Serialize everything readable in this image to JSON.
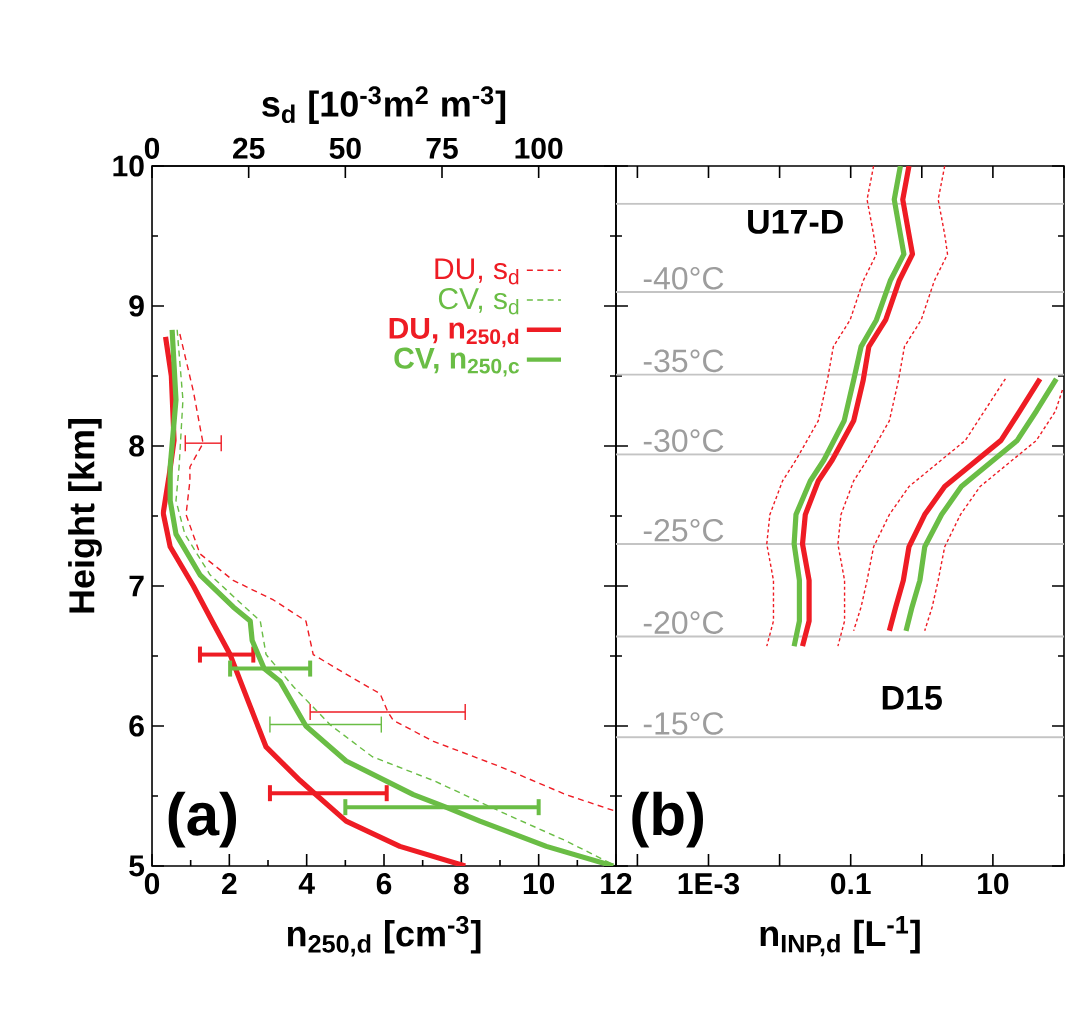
{
  "chart_data": [
    {
      "type": "line",
      "xlabel": "n$_{250,d}$ [cm$^{-3}$]",
      "x2label": "s$_{d}$ [10$^{-3}$m$^{2}$ m$^{-3}$]",
      "ylabel": "Height [km]",
      "xlim": [
        0,
        12
      ],
      "xticks": [
        0,
        2,
        4,
        6,
        8,
        10,
        12
      ],
      "x2lim": [
        0,
        120
      ],
      "x2ticks": [
        0,
        25,
        50,
        75,
        100
      ],
      "ylim": [
        5,
        10
      ],
      "yticks": [
        5,
        6,
        7,
        8,
        9,
        10
      ],
      "legend": "top right",
      "annotations": [
        "(a)"
      ],
      "series": [
        {
          "name": "DU, s$_{d}$",
          "color": "#ee1c24",
          "axis": "x2",
          "line_style": "dashed",
          "x": [
            7.2,
            10.7,
            13.2,
            9.8,
            9.8,
            8.8,
            12.4,
            21,
            31.4,
            39.8,
            41.7,
            50.2,
            59,
            61,
            62.4,
            72.8,
            90,
            107,
            120
          ],
          "values": [
            8.8,
            8.39,
            8.02,
            7.85,
            7.75,
            7.51,
            7.23,
            7.04,
            6.9,
            6.75,
            6.51,
            6.37,
            6.23,
            6.1,
            6.04,
            5.89,
            5.71,
            5.51,
            5.39
          ],
          "xerrors": [
            null,
            null,
            [
              8.6,
              17.9
            ],
            null,
            null,
            null,
            null,
            null,
            null,
            null,
            null,
            null,
            null,
            [
              40.9,
              81
            ],
            null,
            null,
            null,
            null,
            null
          ]
        },
        {
          "name": "CV, s$_{d}$",
          "color": "#6abd45",
          "axis": "x2",
          "line_style": "dashed",
          "x": [
            6.5,
            8,
            7,
            6.2,
            8.5,
            15,
            24,
            28,
            29.5,
            36.6,
            45,
            46,
            57,
            72.8,
            91.6,
            107,
            120
          ],
          "values": [
            8.83,
            8.33,
            7.85,
            7.61,
            7.37,
            7.08,
            6.85,
            6.75,
            6.51,
            6.28,
            6.04,
            6.01,
            5.78,
            5.61,
            5.37,
            5.18,
            5.0
          ],
          "xerrors": [
            null,
            null,
            null,
            null,
            null,
            null,
            null,
            null,
            null,
            null,
            null,
            [
              30.5,
              59.3
            ],
            null,
            null,
            null,
            null,
            null
          ]
        },
        {
          "name": "DU, n$_{250,d}$",
          "color": "#ee1c24",
          "line_style": "solid",
          "x": [
            0.35,
            0.5,
            0.57,
            0.45,
            0.29,
            0.47,
            1.07,
            1.59,
            2.02,
            2.54,
            2.95,
            3.83,
            4.2,
            5.02,
            6.41,
            8.1
          ],
          "values": [
            8.78,
            8.5,
            8.04,
            7.8,
            7.52,
            7.28,
            7.0,
            6.73,
            6.51,
            6.14,
            5.85,
            5.61,
            5.52,
            5.32,
            5.14,
            5.0
          ],
          "xerrors": [
            null,
            null,
            null,
            null,
            null,
            null,
            null,
            null,
            [
              1.24,
              2.62
            ],
            null,
            null,
            null,
            [
              3.05,
              6.07
            ],
            null,
            null,
            null
          ]
        },
        {
          "name": "CV, n$_{250,c}$",
          "color": "#6abd45",
          "line_style": "solid",
          "x": [
            0.52,
            0.62,
            0.47,
            0.47,
            0.62,
            1.24,
            2.1,
            2.54,
            2.59,
            2.9,
            3.31,
            3.98,
            5.02,
            6.76,
            7.6,
            8.48,
            10.2,
            11.93
          ],
          "values": [
            8.83,
            8.33,
            7.85,
            7.61,
            7.37,
            7.08,
            6.85,
            6.75,
            6.61,
            6.41,
            6.32,
            6.0,
            5.75,
            5.51,
            5.42,
            5.32,
            5.14,
            5.0
          ],
          "xerrors": [
            null,
            null,
            null,
            null,
            null,
            null,
            null,
            null,
            null,
            [
              2.02,
              4.09
            ],
            null,
            null,
            null,
            null,
            [
              5.0,
              10.0
            ],
            null,
            null,
            null
          ]
        }
      ]
    },
    {
      "type": "line",
      "xlabel": "n$_{INP,d}$ [L$^{-1}$]",
      "log": "x",
      "xlim": [
        5e-05,
        100
      ],
      "xticks": [
        {
          "value": 0.0001,
          "label": null
        },
        {
          "value": 0.001,
          "label": "1E-3"
        },
        {
          "value": 0.01,
          "label": null
        },
        0.1,
        {
          "value": 1,
          "label": null
        },
        10,
        {
          "value": 100,
          "label": null
        }
      ],
      "ylim": [
        5,
        10
      ],
      "yticks": [
        5,
        6,
        7,
        8,
        9,
        10
      ],
      "tick_labels": "x",
      "ref_lines": [
        {
          "axis": "y",
          "value": 9.73,
          "color": "#c4c4c4"
        },
        {
          "axis": "y",
          "value": 9.1,
          "label": "-40°C",
          "color": "#c4c4c4"
        },
        {
          "axis": "y",
          "value": 8.51,
          "label": "-35°C",
          "color": "#c4c4c4"
        },
        {
          "axis": "y",
          "value": 7.94,
          "label": "-30°C",
          "color": "#c4c4c4"
        },
        {
          "axis": "y",
          "value": 7.3,
          "label": "-25°C",
          "color": "#c4c4c4"
        },
        {
          "axis": "y",
          "value": 6.64,
          "label": "-20°C",
          "color": "#c4c4c4"
        },
        {
          "axis": "y",
          "value": 5.92,
          "label": "-15°C",
          "color": "#c4c4c4"
        }
      ],
      "annotations": [
        "(b)",
        "U17-D",
        "D15"
      ],
      "series": [
        {
          "color": "#ee1c24",
          "line_style": "dotted",
          "x": [
            2.1,
            1.7,
            2.1,
            2.3,
            1.5,
            0.98,
            0.57,
            0.47,
            0.35,
            0.17,
            0.11,
            0.073,
            0.066,
            0.082,
            0.082,
            0.066
          ],
          "values": [
            10,
            9.76,
            9.51,
            9.37,
            9.18,
            8.9,
            8.71,
            8.47,
            8.18,
            7.9,
            7.75,
            7.51,
            7.3,
            7.04,
            6.75,
            6.57
          ]
        },
        {
          "color": "#ee1c24",
          "line_style": "dotted",
          "x": [
            0.21,
            0.17,
            0.21,
            0.23,
            0.15,
            0.098,
            0.057,
            0.047,
            0.035,
            0.017,
            0.011,
            0.0073,
            0.0066,
            0.0082,
            0.0082,
            0.0066
          ],
          "values": [
            10,
            9.76,
            9.51,
            9.37,
            9.18,
            8.9,
            8.71,
            8.47,
            8.18,
            7.9,
            7.75,
            7.51,
            7.3,
            7.04,
            6.75,
            6.57
          ]
        },
        {
          "color": "#6abd45",
          "line_style": "solid",
          "x": [
            0.5,
            0.41,
            0.5,
            0.56,
            0.36,
            0.23,
            0.14,
            0.11,
            0.081,
            0.042,
            0.027,
            0.017,
            0.016,
            0.019,
            0.019,
            0.016
          ],
          "values": [
            10,
            9.76,
            9.51,
            9.37,
            9.18,
            8.9,
            8.71,
            8.47,
            8.18,
            7.9,
            7.75,
            7.51,
            7.3,
            7.04,
            6.75,
            6.57
          ]
        },
        {
          "color": "#ee1c24",
          "line_style": "solid",
          "x": [
            0.66,
            0.54,
            0.66,
            0.74,
            0.48,
            0.31,
            0.18,
            0.15,
            0.11,
            0.055,
            0.035,
            0.023,
            0.021,
            0.026,
            0.026,
            0.021
          ],
          "values": [
            10,
            9.76,
            9.51,
            9.37,
            9.18,
            8.9,
            8.71,
            8.47,
            8.18,
            7.9,
            7.75,
            7.51,
            7.3,
            7.04,
            6.75,
            6.57
          ]
        },
        {
          "color": "#ee1c24",
          "line_style": "dotted",
          "x": [
            95,
            76,
            41,
            6.6,
            3.5,
            2.1,
            1.7,
            1.4,
            1.1
          ],
          "values": [
            8.4,
            8.25,
            8.04,
            7.71,
            7.51,
            7.28,
            7.04,
            6.85,
            6.68
          ]
        },
        {
          "color": "#ee1c24",
          "line_style": "dotted",
          "x": [
            15,
            7.6,
            4.1,
            0.66,
            0.35,
            0.21,
            0.17,
            0.14,
            0.11
          ],
          "values": [
            8.48,
            8.25,
            8.04,
            7.71,
            7.51,
            7.28,
            7.04,
            6.85,
            6.68
          ]
        },
        {
          "color": "#6abd45",
          "line_style": "solid",
          "x": [
            78,
            41,
            22,
            3.6,
            1.9,
            1.1,
            0.94,
            0.73,
            0.6
          ],
          "values": [
            8.48,
            8.25,
            8.04,
            7.71,
            7.51,
            7.28,
            7.04,
            6.85,
            6.68
          ]
        },
        {
          "color": "#ee1c24",
          "line_style": "solid",
          "x": [
            46,
            24,
            13,
            2.1,
            1.1,
            0.66,
            0.55,
            0.43,
            0.35
          ],
          "values": [
            8.48,
            8.25,
            8.04,
            7.71,
            7.51,
            7.28,
            7.04,
            6.85,
            6.68
          ]
        }
      ]
    }
  ]
}
